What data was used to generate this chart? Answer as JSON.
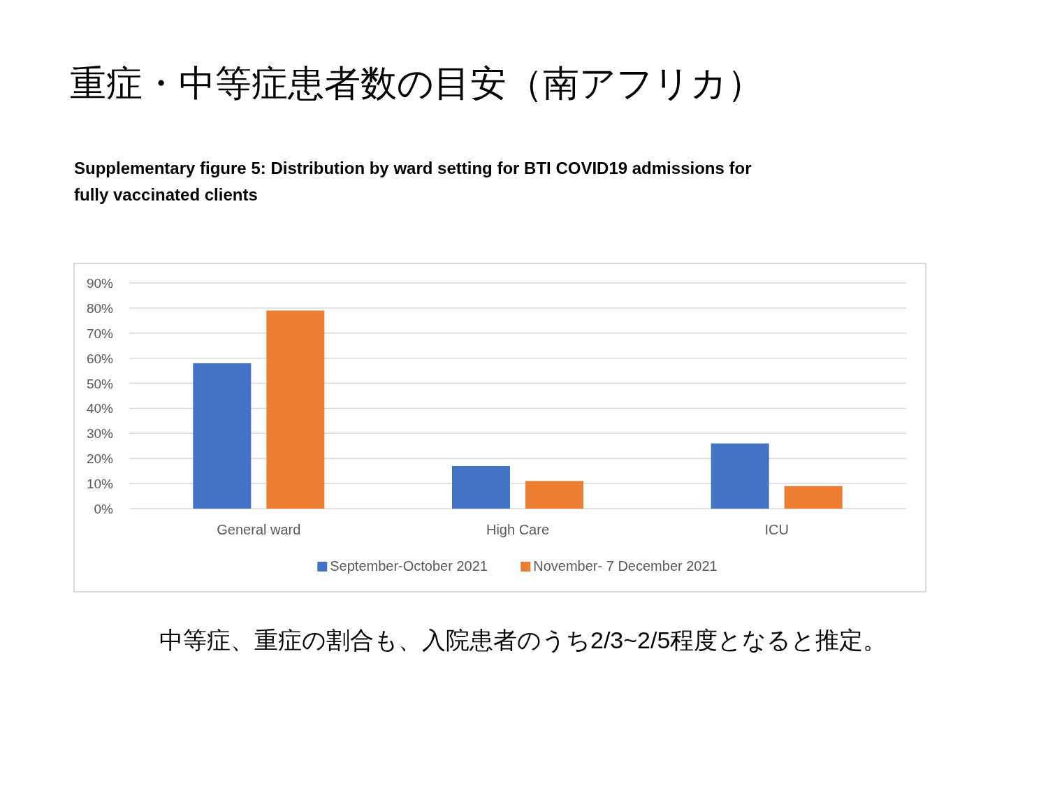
{
  "chart_data": {
    "type": "bar",
    "title": "重症・中等症患者数の目安（南アフリカ）",
    "subtitle": "Supplementary figure 5: Distribution by ward setting for BTI COVID19 admissions for fully vaccinated clients",
    "categories": [
      "General ward",
      "High Care",
      "ICU"
    ],
    "series": [
      {
        "name": "September-October 2021",
        "color": "#4472c4",
        "values": [
          58,
          17,
          26
        ]
      },
      {
        "name": "November- 7 December 2021",
        "color": "#ed7d31",
        "values": [
          79,
          11,
          9
        ]
      }
    ],
    "ylim": [
      0,
      90
    ],
    "yticks": [
      {
        "value": 0,
        "label": "0%"
      },
      {
        "value": 10,
        "label": "10%"
      },
      {
        "value": 20,
        "label": "20%"
      },
      {
        "value": 30,
        "label": "30%"
      },
      {
        "value": 40,
        "label": "40%"
      },
      {
        "value": 50,
        "label": "50%"
      },
      {
        "value": 60,
        "label": "60%"
      },
      {
        "value": 70,
        "label": "70%"
      },
      {
        "value": 80,
        "label": "80%"
      },
      {
        "value": 90,
        "label": "90%"
      }
    ],
    "grid": "y",
    "legend": "bottom",
    "annotations": [
      "中等症、重症の割合も、入院患者のうち2/3~2/5程度となると推定。"
    ]
  }
}
